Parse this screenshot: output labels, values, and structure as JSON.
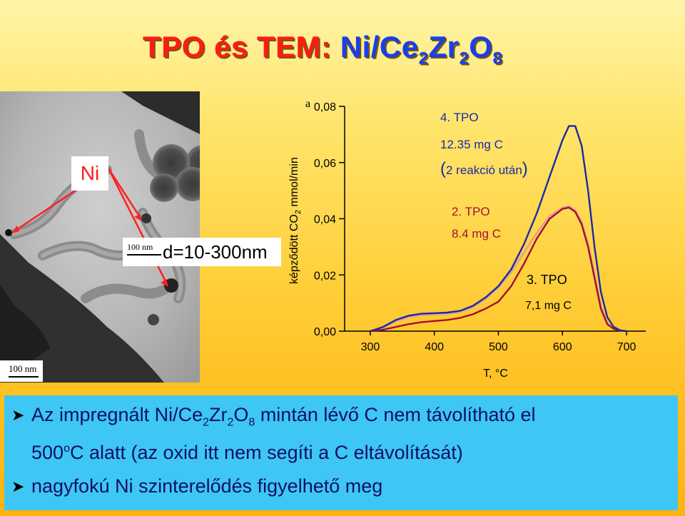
{
  "title": {
    "part1": "TPO és TEM:",
    "part2": "Ni/Ce",
    "sub1": "2",
    "part3": "Zr",
    "sub2": "2",
    "part4": "O",
    "sub3": "8"
  },
  "tem": {
    "ni_label": "Ni",
    "scale_small": "100 nm",
    "diameter": "d=10-300nm",
    "scale_main": "100 nm"
  },
  "chart_data": {
    "type": "line",
    "ylabel_pre": "képződött CO",
    "ylabel_sub": "2",
    "ylabel_post": " mmol/min",
    "xlabel": "T, °C",
    "corner_label": "a",
    "xlim": [
      260,
      730
    ],
    "ylim": [
      0,
      0.08
    ],
    "xticks": [
      300,
      400,
      500,
      600,
      700
    ],
    "yticks": [
      "0,08",
      "0,06",
      "0,04",
      "0,02",
      "0,00"
    ],
    "series": [
      {
        "name": "4. TPO",
        "color": "#1a2aa8",
        "x": [
          300,
          320,
          340,
          360,
          380,
          400,
          420,
          440,
          460,
          480,
          500,
          520,
          540,
          560,
          580,
          600,
          610,
          620,
          630,
          640,
          650,
          660,
          670,
          680,
          690,
          700
        ],
        "y": [
          0.0,
          0.0015,
          0.004,
          0.0055,
          0.0062,
          0.0064,
          0.0066,
          0.0072,
          0.009,
          0.012,
          0.016,
          0.022,
          0.031,
          0.042,
          0.055,
          0.068,
          0.073,
          0.073,
          0.066,
          0.05,
          0.03,
          0.014,
          0.005,
          0.0015,
          0.0003,
          0.0
        ]
      },
      {
        "name": "2. TPO",
        "color": "#e89a9a",
        "x": [
          300,
          320,
          340,
          360,
          380,
          400,
          420,
          440,
          460,
          480,
          500,
          520,
          540,
          560,
          580,
          600,
          610,
          620,
          630,
          640,
          650,
          660,
          670,
          680,
          690,
          700
        ],
        "y": [
          0.0,
          0.001,
          0.0035,
          0.005,
          0.0057,
          0.006,
          0.0062,
          0.0068,
          0.0085,
          0.0115,
          0.0155,
          0.021,
          0.028,
          0.035,
          0.041,
          0.044,
          0.0445,
          0.043,
          0.039,
          0.031,
          0.02,
          0.009,
          0.003,
          0.001,
          0.0002,
          0.0
        ]
      },
      {
        "name": "3. TPO",
        "color": "#a01030",
        "x": [
          300,
          320,
          340,
          360,
          380,
          400,
          420,
          440,
          460,
          480,
          500,
          520,
          540,
          560,
          580,
          600,
          610,
          620,
          630,
          640,
          650,
          660,
          670,
          680,
          690,
          700
        ],
        "y": [
          0.0,
          0.0005,
          0.0015,
          0.0025,
          0.0032,
          0.0036,
          0.004,
          0.0047,
          0.006,
          0.008,
          0.0105,
          0.016,
          0.024,
          0.033,
          0.04,
          0.0435,
          0.044,
          0.0425,
          0.038,
          0.03,
          0.019,
          0.008,
          0.0025,
          0.0008,
          0.0002,
          0.0
        ]
      }
    ],
    "annotations": {
      "tpo4_name": "4. TPO",
      "tpo4_mass": "12.35 mg C",
      "tpo4_note_open": "(",
      "tpo4_note": "2 reakció után",
      "tpo4_note_close": ")",
      "tpo2_name": "2. TPO",
      "tpo2_mass": "8.4 mg C",
      "tpo3_name": "3. TPO",
      "tpo3_mass": "7,1 mg C"
    }
  },
  "bullets": {
    "b1_l1_a": "Az impregnált Ni/Ce",
    "b1_s1": "2",
    "b1_l1_b": "Zr",
    "b1_s2": "2",
    "b1_l1_c": "O",
    "b1_s3": "8",
    "b1_l1_d": " mintán lévő C nem távolítható el",
    "b1_l2_a": "500",
    "b1_l2_sup": "o",
    "b1_l2_b": "C alatt (az oxid itt nem segíti a C eltávolítását)",
    "b2": "nagyfokú Ni szinterelődés figyelhető meg"
  }
}
